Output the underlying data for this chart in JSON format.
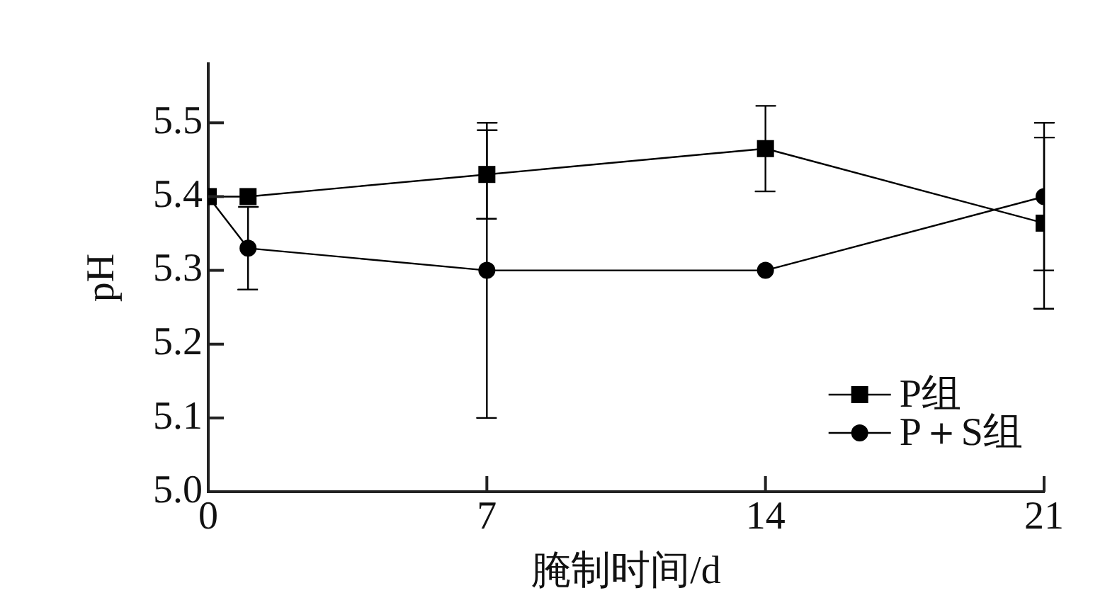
{
  "chart_data": {
    "type": "line",
    "xlabel": "腌制时间/d",
    "ylabel": "pH",
    "x": [
      0,
      1,
      7,
      14,
      21
    ],
    "xlim": [
      0,
      21
    ],
    "xticks": [
      0,
      7,
      14,
      21
    ],
    "ylim": [
      5.0,
      5.58
    ],
    "yticks": [
      {
        "value": 5.0,
        "label": "5.0"
      },
      5.1,
      5.2,
      5.3,
      5.4,
      5.5
    ],
    "grid": false,
    "legend": "bottom right",
    "series": [
      {
        "name": "P组",
        "color": "#000000",
        "marker": "square",
        "values": [
          5.4,
          5.4,
          5.43,
          5.465,
          5.364
        ],
        "errors": [
          null,
          null,
          0.06,
          0.058,
          0.116
        ]
      },
      {
        "name": "P＋S组",
        "color": "#000000",
        "marker": "circle",
        "values": [
          5.4,
          5.33,
          5.3,
          5.3,
          5.4
        ],
        "errors": [
          null,
          0.056,
          0.2,
          null,
          0.1
        ]
      }
    ]
  }
}
